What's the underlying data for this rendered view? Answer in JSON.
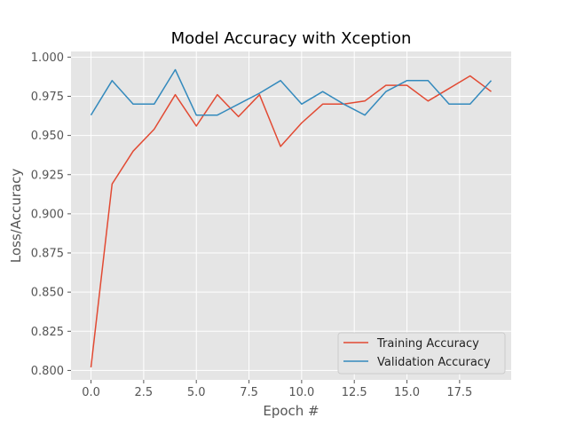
{
  "chart_data": {
    "type": "line",
    "title": "Model Accuracy with Xception",
    "xlabel": "Epoch #",
    "ylabel": "Loss/Accuracy",
    "xlim": [
      -0.95,
      19.95
    ],
    "ylim": [
      0.794,
      1.0036
    ],
    "x_ticks": [
      0,
      2.5,
      5,
      7.5,
      10,
      12.5,
      15,
      17.5
    ],
    "x_tick_labels": [
      "0.0",
      "2.5",
      "5.0",
      "7.5",
      "10.0",
      "12.5",
      "15.0",
      "17.5"
    ],
    "y_ticks": [
      0.8,
      0.825,
      0.85,
      0.875,
      0.9,
      0.925,
      0.95,
      0.975,
      1.0
    ],
    "y_tick_labels": [
      "0.800",
      "0.825",
      "0.850",
      "0.875",
      "0.900",
      "0.925",
      "0.950",
      "0.975",
      "1.000"
    ],
    "grid": true,
    "legend_position": "lower-right",
    "background_color": "#e5e5e5",
    "x": [
      0,
      1,
      2,
      3,
      4,
      5,
      6,
      7,
      8,
      9,
      10,
      11,
      12,
      13,
      14,
      15,
      16,
      17,
      18,
      19
    ],
    "series": [
      {
        "name": "Training Accuracy",
        "color": "#e24a33",
        "values": [
          0.802,
          0.919,
          0.94,
          0.954,
          0.976,
          0.956,
          0.976,
          0.962,
          0.976,
          0.943,
          0.958,
          0.97,
          0.97,
          0.972,
          0.982,
          0.982,
          0.972,
          0.98,
          0.988,
          0.978
        ]
      },
      {
        "name": "Validation Accuracy",
        "color": "#348abd",
        "values": [
          0.963,
          0.985,
          0.97,
          0.97,
          0.992,
          0.963,
          0.963,
          0.97,
          0.977,
          0.985,
          0.97,
          0.978,
          0.97,
          0.963,
          0.978,
          0.985,
          0.985,
          0.97,
          0.97,
          0.985
        ]
      }
    ]
  }
}
